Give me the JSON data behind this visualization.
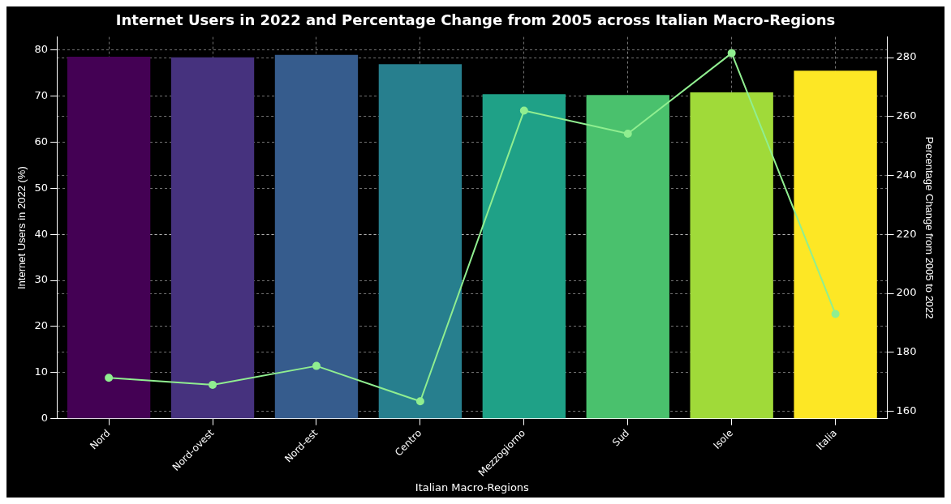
{
  "chart_data": {
    "type": "bar",
    "title": "Internet Users in 2022 and Percentage Change from 2005 across Italian Macro-Regions",
    "xlabel": "Italian Macro-Regions",
    "ylabel": "Internet Users in 2022 (%)",
    "y2label": "Percentage Change from 2005 to 2022",
    "categories": [
      "Nord",
      "Nord-ovest",
      "Nord-est",
      "Centro",
      "Mezzogiorno",
      "Sud",
      "Isole",
      "Italia"
    ],
    "series": [
      {
        "colors": [
          "#440154",
          "#46327e",
          "#365c8d",
          "#277f8e",
          "#1fa187",
          "#4ac16d",
          "#a0da39",
          "#fde725"
        ],
        "values": [
          78.5,
          78.4,
          78.9,
          76.9,
          70.4,
          70.2,
          70.8,
          75.5
        ]
      },
      {
        "type": "line",
        "axis": "y2",
        "color": "#90ee90",
        "marker": "circle",
        "values": [
          171.4,
          169.0,
          175.4,
          163.4,
          262.0,
          254.2,
          281.5,
          193.0
        ]
      }
    ],
    "ylim": [
      0,
      82.8
    ],
    "yticks": [
      0,
      10,
      20,
      30,
      40,
      50,
      60,
      70,
      80
    ],
    "y2lim": [
      157.5,
      287
    ],
    "y2ticks": [
      160,
      180,
      200,
      220,
      240,
      260,
      280
    ],
    "grid": true,
    "legend": false
  }
}
